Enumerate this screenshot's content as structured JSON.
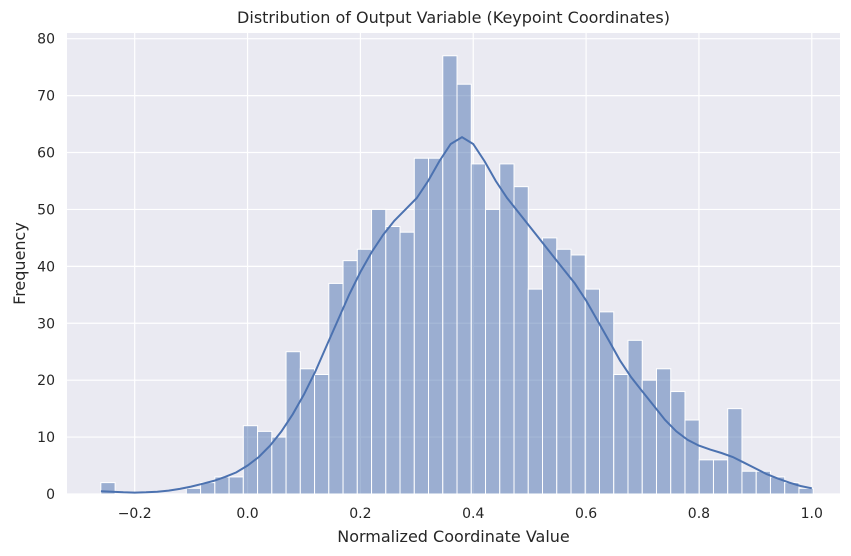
{
  "chart_data": {
    "type": "bar",
    "title": "Distribution of Output Variable (Keypoint Coordinates)",
    "xlabel": "Normalized Coordinate Value",
    "ylabel": "Frequency",
    "xlim": [
      -0.32,
      1.05
    ],
    "ylim": [
      0,
      81
    ],
    "x_ticks": [
      -0.2,
      0.0,
      0.2,
      0.4,
      0.6,
      0.8,
      1.0
    ],
    "x_tick_labels": [
      "−0.2",
      "0.0",
      "0.2",
      "0.4",
      "0.6",
      "0.8",
      "1.0"
    ],
    "y_ticks": [
      0,
      10,
      20,
      30,
      40,
      50,
      60,
      70,
      80
    ],
    "y_tick_labels": [
      "0",
      "10",
      "20",
      "30",
      "40",
      "50",
      "60",
      "70",
      "80"
    ],
    "grid": true,
    "bin_start": -0.26,
    "bin_width": 0.02525,
    "counts": [
      2,
      0,
      0,
      0,
      0,
      0,
      1,
      2,
      3,
      3,
      12,
      11,
      10,
      25,
      22,
      21,
      37,
      41,
      43,
      50,
      47,
      46,
      59,
      59,
      77,
      72,
      58,
      50,
      58,
      54,
      36,
      45,
      43,
      42,
      36,
      32,
      21,
      27,
      20,
      22,
      18,
      13,
      6,
      6,
      15,
      4,
      4,
      3,
      2,
      1
    ],
    "kde": [
      [
        -0.26,
        0.5
      ],
      [
        -0.24,
        0.4
      ],
      [
        -0.22,
        0.3
      ],
      [
        -0.2,
        0.25
      ],
      [
        -0.18,
        0.3
      ],
      [
        -0.16,
        0.4
      ],
      [
        -0.14,
        0.6
      ],
      [
        -0.12,
        0.9
      ],
      [
        -0.1,
        1.3
      ],
      [
        -0.08,
        1.8
      ],
      [
        -0.06,
        2.3
      ],
      [
        -0.04,
        3.0
      ],
      [
        -0.02,
        3.8
      ],
      [
        0.0,
        5.0
      ],
      [
        0.02,
        6.5
      ],
      [
        0.04,
        8.5
      ],
      [
        0.06,
        11.0
      ],
      [
        0.08,
        14.0
      ],
      [
        0.1,
        17.5
      ],
      [
        0.12,
        21.5
      ],
      [
        0.14,
        26.0
      ],
      [
        0.16,
        30.5
      ],
      [
        0.18,
        35.0
      ],
      [
        0.2,
        39.0
      ],
      [
        0.22,
        42.5
      ],
      [
        0.24,
        45.5
      ],
      [
        0.26,
        48.0
      ],
      [
        0.28,
        50.0
      ],
      [
        0.3,
        52.0
      ],
      [
        0.32,
        55.0
      ],
      [
        0.34,
        58.5
      ],
      [
        0.36,
        61.5
      ],
      [
        0.38,
        62.7
      ],
      [
        0.4,
        61.5
      ],
      [
        0.42,
        58.5
      ],
      [
        0.44,
        55.0
      ],
      [
        0.46,
        52.0
      ],
      [
        0.48,
        49.5
      ],
      [
        0.5,
        47.0
      ],
      [
        0.52,
        44.5
      ],
      [
        0.54,
        42.0
      ],
      [
        0.56,
        39.5
      ],
      [
        0.58,
        37.0
      ],
      [
        0.6,
        34.0
      ],
      [
        0.62,
        30.5
      ],
      [
        0.64,
        27.0
      ],
      [
        0.66,
        23.5
      ],
      [
        0.68,
        20.5
      ],
      [
        0.7,
        18.0
      ],
      [
        0.72,
        15.5
      ],
      [
        0.74,
        13.0
      ],
      [
        0.76,
        11.0
      ],
      [
        0.78,
        9.5
      ],
      [
        0.8,
        8.5
      ],
      [
        0.82,
        7.8
      ],
      [
        0.84,
        7.2
      ],
      [
        0.86,
        6.5
      ],
      [
        0.88,
        5.5
      ],
      [
        0.9,
        4.5
      ],
      [
        0.92,
        3.5
      ],
      [
        0.94,
        2.7
      ],
      [
        0.96,
        2.0
      ],
      [
        0.98,
        1.4
      ],
      [
        1.0,
        1.0
      ]
    ],
    "colors": {
      "bar_fill": "#4c72b0",
      "bar_alpha": "0.5",
      "kde_line": "#4c72b0",
      "plot_background": "#eaeaf2",
      "grid": "#ffffff"
    }
  }
}
